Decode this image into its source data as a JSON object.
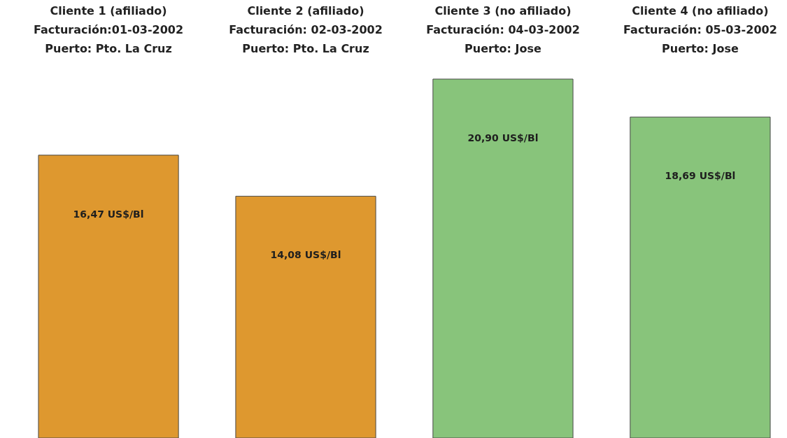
{
  "chart_data": {
    "type": "bar",
    "categories": [
      "Cliente 1 (afiliado)\nFacturación:01-03-2002\nPuerto: Pto. La Cruz",
      "Cliente 2 (afiliado)\nFacturación: 02-03-2002\nPuerto: Pto. La Cruz",
      "Cliente 3 (no afiliado)\nFacturación: 04-03-2002\nPuerto: Jose",
      "Cliente 4 (no afiliado)\nFacturación: 05-03-2002\nPuerto: Jose"
    ],
    "values": [
      16.47,
      14.08,
      20.9,
      18.69
    ],
    "colors": [
      "#de982f",
      "#de982f",
      "#88c47b",
      "#88c47b"
    ],
    "value_labels": [
      "16,47 US$/Bl",
      "14,08 US$/Bl",
      "20,90 US$/Bl",
      "18,69 US$/Bl"
    ],
    "tick_labels": "x"
  }
}
